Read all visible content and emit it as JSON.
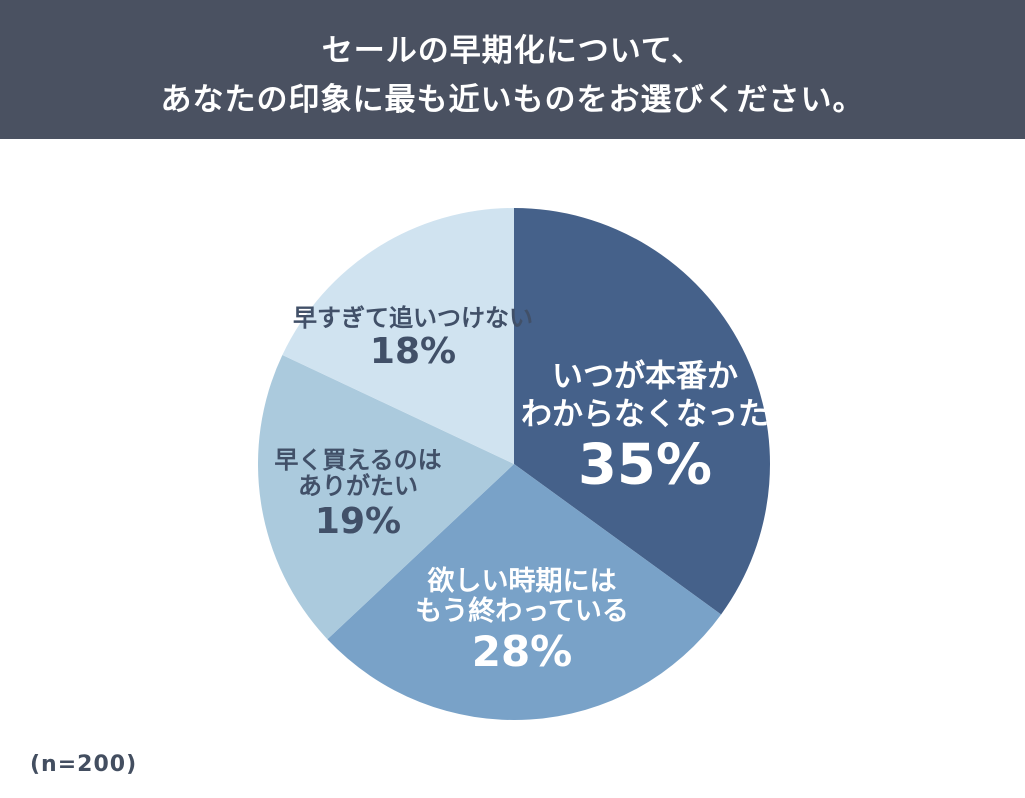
{
  "header": {
    "title_line1": "セールの早期化について、",
    "title_line2": "あなたの印象に最も近いものをお選びください。",
    "bg_color": "#4a5161",
    "text_color": "#ffffff"
  },
  "footnote": "(n=200)",
  "chart_data": {
    "type": "pie",
    "title": "セールの早期化について、あなたの印象に最も近いものをお選びください。",
    "sample_size_label": "(n=200)",
    "start_angle_deg": 0,
    "direction": "clockwise",
    "legend_position": "none",
    "slices": [
      {
        "label": "いつが本番かわからなくなった",
        "label_lines": [
          "いつが本番か",
          "わからなくなった"
        ],
        "value_pct": 35,
        "value_label": "35%",
        "color": "#45618a",
        "text_color": "#ffffff"
      },
      {
        "label": "欲しい時期にはもう終わっている",
        "label_lines": [
          "欲しい時期には",
          "もう終わっている"
        ],
        "value_pct": 28,
        "value_label": "28%",
        "color": "#79a2c8",
        "text_color": "#ffffff"
      },
      {
        "label": "早く買えるのはありがたい",
        "label_lines": [
          "早く買えるのは",
          "ありがたい"
        ],
        "value_pct": 19,
        "value_label": "19%",
        "color": "#abcadd",
        "text_color": "#415068"
      },
      {
        "label": "早すぎて追いつけない",
        "label_lines": [
          "早すぎて追いつけない"
        ],
        "value_pct": 18,
        "value_label": "18%",
        "color": "#d0e3f0",
        "text_color": "#415068"
      }
    ]
  }
}
